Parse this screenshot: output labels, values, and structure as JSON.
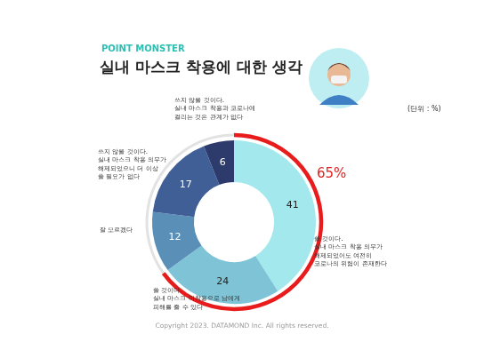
{
  "chart_data": {
    "type": "doughnut",
    "subtitle": "POINT MONSTER",
    "title": "실내 마스크 착용에 대한 생각",
    "categories": [
      [
        "쓸 것이다.",
        "실내 마스크 착용 의무가",
        "해제되었어도 여전히",
        "코로나의 위험이 존재한다"
      ],
      [
        "쓸 것이다.",
        "실내 마스크 미착용으로 남에게",
        "피해를 줄 수 있다"
      ],
      [
        "잘 모르겠다"
      ],
      [
        "쓰지 않을 것이다.",
        "실내 마스크 착용 의무가",
        "해제되었으니 더 이상",
        "쓸 필요가 없다"
      ],
      [
        "쓰지 않을 것이다.",
        "실내 마스크 착용과 코로나에",
        "걸리는 것은 관계가 없다"
      ]
    ],
    "values": [
      41,
      24,
      12,
      17,
      6
    ],
    "colors": [
      "#a3e8ec",
      "#7fc3d6",
      "#5a8fb8",
      "#3f5f96",
      "#2d3a6c"
    ],
    "data_labels": true,
    "annotations": [
      {
        "text": "(단위 : %)"
      },
      {
        "text": "65%",
        "value": 65
      },
      {
        "text": "Copyright 2023. DATAMOND Inc. All rights reserved."
      }
    ]
  }
}
